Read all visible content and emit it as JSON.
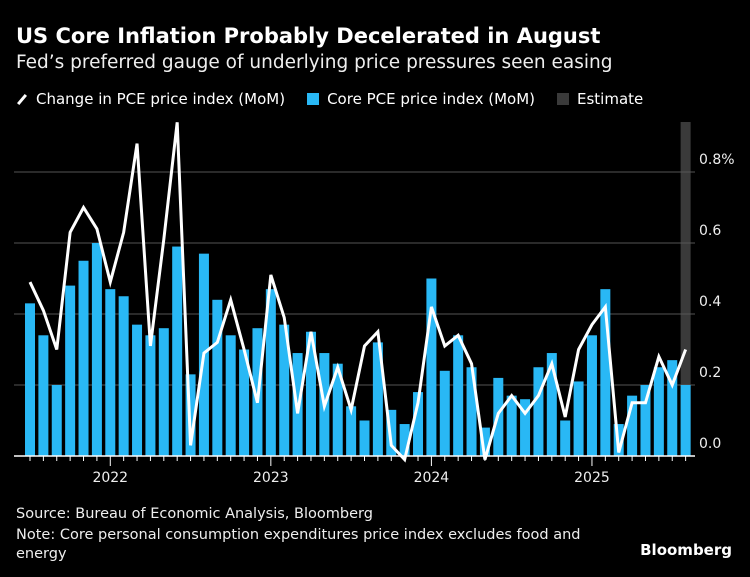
{
  "title": "US Core Inflation Probably Decelerated in August",
  "subtitle": "Fed’s preferred gauge of underlying price pressures seen easing",
  "legend": [
    {
      "label": "Change in PCE price index (MoM)",
      "color": "#ffffff",
      "kind": "line"
    },
    {
      "label": "Core PCE price index (MoM)",
      "color": "#29b8f5",
      "kind": "bar"
    },
    {
      "label": "Estimate",
      "color": "#3a3a3a",
      "kind": "band"
    }
  ],
  "footer": {
    "source": "Source: Bureau of Economic Analysis, Bloomberg",
    "note": "Note: Core personal consumption expenditures price index excludes food and energy",
    "brand": "Bloomberg"
  },
  "chart_data": {
    "type": "bar",
    "start_month": "2021-07",
    "end_month": "2025-08",
    "x_tick_labels": [
      "2022",
      "2023",
      "2024",
      "2025"
    ],
    "y_tick_labels": [
      "0.0",
      "0.2",
      "0.4",
      "0.6",
      "0.8%"
    ],
    "ylim": [
      -0.02,
      0.94
    ],
    "grid": true,
    "estimate_months": [
      "2025-08"
    ],
    "series": [
      {
        "name": "Core PCE price index (MoM)",
        "type": "bar",
        "color": "#29b8f5",
        "values": [
          0.43,
          0.34,
          0.2,
          0.48,
          0.55,
          0.6,
          0.47,
          0.45,
          0.37,
          0.34,
          0.36,
          0.59,
          0.23,
          0.57,
          0.44,
          0.34,
          0.3,
          0.36,
          0.47,
          0.37,
          0.29,
          0.35,
          0.29,
          0.26,
          0.14,
          0.1,
          0.32,
          0.13,
          0.09,
          0.18,
          0.5,
          0.24,
          0.34,
          0.25,
          0.08,
          0.22,
          0.17,
          0.16,
          0.25,
          0.29,
          0.1,
          0.21,
          0.34,
          0.47,
          0.09,
          0.17,
          0.2,
          0.25,
          0.27,
          0.2
        ]
      },
      {
        "name": "Change in PCE price index (MoM)",
        "type": "line",
        "color": "#ffffff",
        "values": [
          0.49,
          0.41,
          0.3,
          0.63,
          0.7,
          0.64,
          0.49,
          0.63,
          0.88,
          0.31,
          0.61,
          0.94,
          0.03,
          0.29,
          0.32,
          0.44,
          0.3,
          0.15,
          0.51,
          0.39,
          0.12,
          0.35,
          0.14,
          0.25,
          0.13,
          0.31,
          0.35,
          0.03,
          -0.01,
          0.15,
          0.42,
          0.31,
          0.34,
          0.26,
          -0.01,
          0.12,
          0.17,
          0.12,
          0.17,
          0.26,
          0.11,
          0.3,
          0.37,
          0.42,
          0.01,
          0.15,
          0.15,
          0.28,
          0.2,
          0.3
        ]
      }
    ]
  }
}
